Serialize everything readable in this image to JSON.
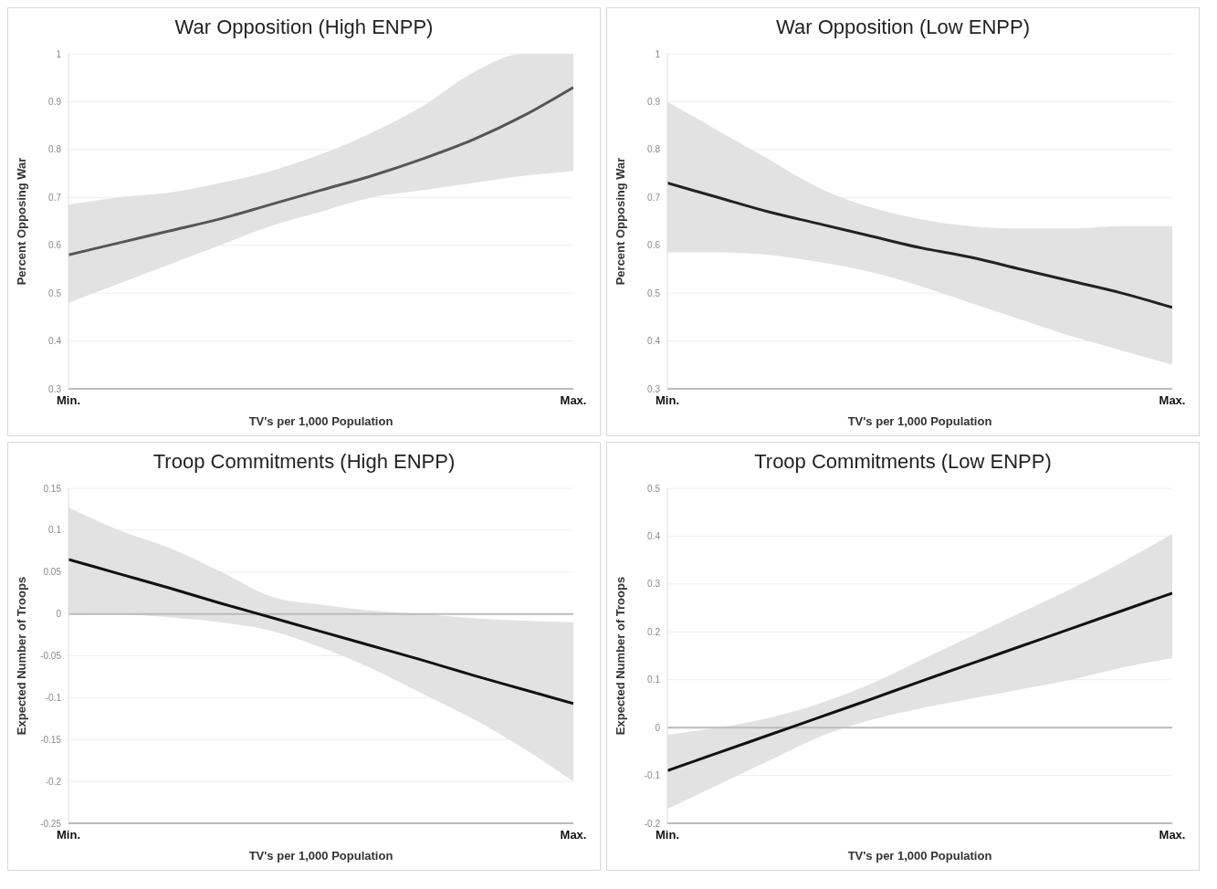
{
  "chart_data": [
    {
      "type": "line",
      "title": "War Opposition (High ENPP)",
      "xlabel": "TV's per 1,000 Population",
      "ylabel": "Percent Opposing War",
      "categories": [
        "Min.",
        null,
        null,
        null,
        null,
        null,
        null,
        null,
        null,
        null,
        "Max."
      ],
      "ylim": [
        0.3,
        1
      ],
      "yticks": [
        0.3,
        0.4,
        0.5,
        0.6,
        0.7,
        0.8,
        0.9,
        1
      ],
      "grid": "y",
      "legend": false,
      "marker": "none",
      "series": [
        {
          "color": "#555555",
          "values": [
            0.58,
            0.605,
            0.63,
            0.655,
            0.685,
            0.715,
            0.745,
            0.78,
            0.82,
            0.87,
            0.93
          ],
          "lower": [
            0.48,
            0.52,
            0.56,
            0.6,
            0.64,
            0.67,
            0.7,
            0.715,
            0.73,
            0.745,
            0.755
          ],
          "upper": [
            0.685,
            0.7,
            0.71,
            0.73,
            0.755,
            0.79,
            0.835,
            0.89,
            0.96,
            1,
            1
          ]
        }
      ]
    },
    {
      "type": "line",
      "title": "War Opposition (Low ENPP)",
      "xlabel": "TV's per 1,000 Population",
      "ylabel": "Percent Opposing War",
      "categories": [
        "Min.",
        null,
        null,
        null,
        null,
        null,
        null,
        null,
        null,
        null,
        "Max."
      ],
      "ylim": [
        0.3,
        1
      ],
      "yticks": [
        0.3,
        0.4,
        0.5,
        0.6,
        0.7,
        0.8,
        0.9,
        1
      ],
      "grid": "y",
      "legend": false,
      "marker": "none",
      "series": [
        {
          "color": "#222222",
          "values": [
            0.73,
            0.7,
            0.67,
            0.645,
            0.62,
            0.595,
            0.575,
            0.55,
            0.525,
            0.5,
            0.47
          ],
          "lower": [
            0.585,
            0.585,
            0.58,
            0.565,
            0.545,
            0.515,
            0.48,
            0.445,
            0.41,
            0.38,
            0.35
          ],
          "upper": [
            0.9,
            0.84,
            0.78,
            0.72,
            0.68,
            0.655,
            0.64,
            0.635,
            0.635,
            0.64,
            0.64
          ]
        }
      ]
    },
    {
      "type": "line",
      "title": "Troop Commitments (High ENPP)",
      "xlabel": "TV's per 1,000 Population",
      "ylabel": "Expected Number of Troops",
      "categories": [
        "Min.",
        null,
        null,
        null,
        null,
        null,
        null,
        null,
        null,
        null,
        "Max."
      ],
      "ylim": [
        -0.25,
        0.15
      ],
      "yticks": [
        -0.25,
        -0.2,
        -0.15,
        -0.1,
        -0.05,
        0,
        0.05,
        0.1,
        0.15
      ],
      "grid": "y",
      "legend": false,
      "marker": "none",
      "ref_lines": [
        {
          "axis": "y",
          "value": 0,
          "color": "#bbbbbb"
        }
      ],
      "series": [
        {
          "color": "#111111",
          "values": [
            0.065,
            0.048,
            0.031,
            0.013,
            -0.004,
            -0.021,
            -0.038,
            -0.055,
            -0.073,
            -0.09,
            -0.107
          ],
          "lower": [
            0.001,
            0,
            -0.004,
            -0.01,
            -0.02,
            -0.04,
            -0.065,
            -0.095,
            -0.125,
            -0.16,
            -0.2
          ],
          "upper": [
            0.127,
            0.1,
            0.079,
            0.051,
            0.021,
            0.011,
            0.004,
            0,
            -0.005,
            -0.008,
            -0.01
          ]
        }
      ]
    },
    {
      "type": "line",
      "title": "Troop Commitments (Low ENPP)",
      "xlabel": "TV's per 1,000 Population",
      "ylabel": "Expected Number of Troops",
      "categories": [
        "Min.",
        null,
        null,
        null,
        null,
        null,
        null,
        null,
        null,
        null,
        "Max."
      ],
      "ylim": [
        -0.2,
        0.5
      ],
      "yticks": [
        -0.2,
        -0.1,
        0,
        0.1,
        0.2,
        0.3,
        0.4,
        0.5
      ],
      "grid": "y",
      "legend": false,
      "marker": "none",
      "ref_lines": [
        {
          "axis": "y",
          "value": 0,
          "color": "#bbbbbb"
        }
      ],
      "series": [
        {
          "color": "#111111",
          "values": [
            -0.09,
            -0.053,
            -0.016,
            0.021,
            0.058,
            0.096,
            0.133,
            0.17,
            0.207,
            0.244,
            0.281
          ],
          "lower": [
            -0.17,
            -0.12,
            -0.07,
            -0.02,
            0.015,
            0.04,
            0.06,
            0.08,
            0.1,
            0.125,
            0.145
          ],
          "upper": [
            -0.015,
            0,
            0.02,
            0.05,
            0.09,
            0.14,
            0.19,
            0.24,
            0.29,
            0.345,
            0.405
          ]
        }
      ]
    }
  ]
}
